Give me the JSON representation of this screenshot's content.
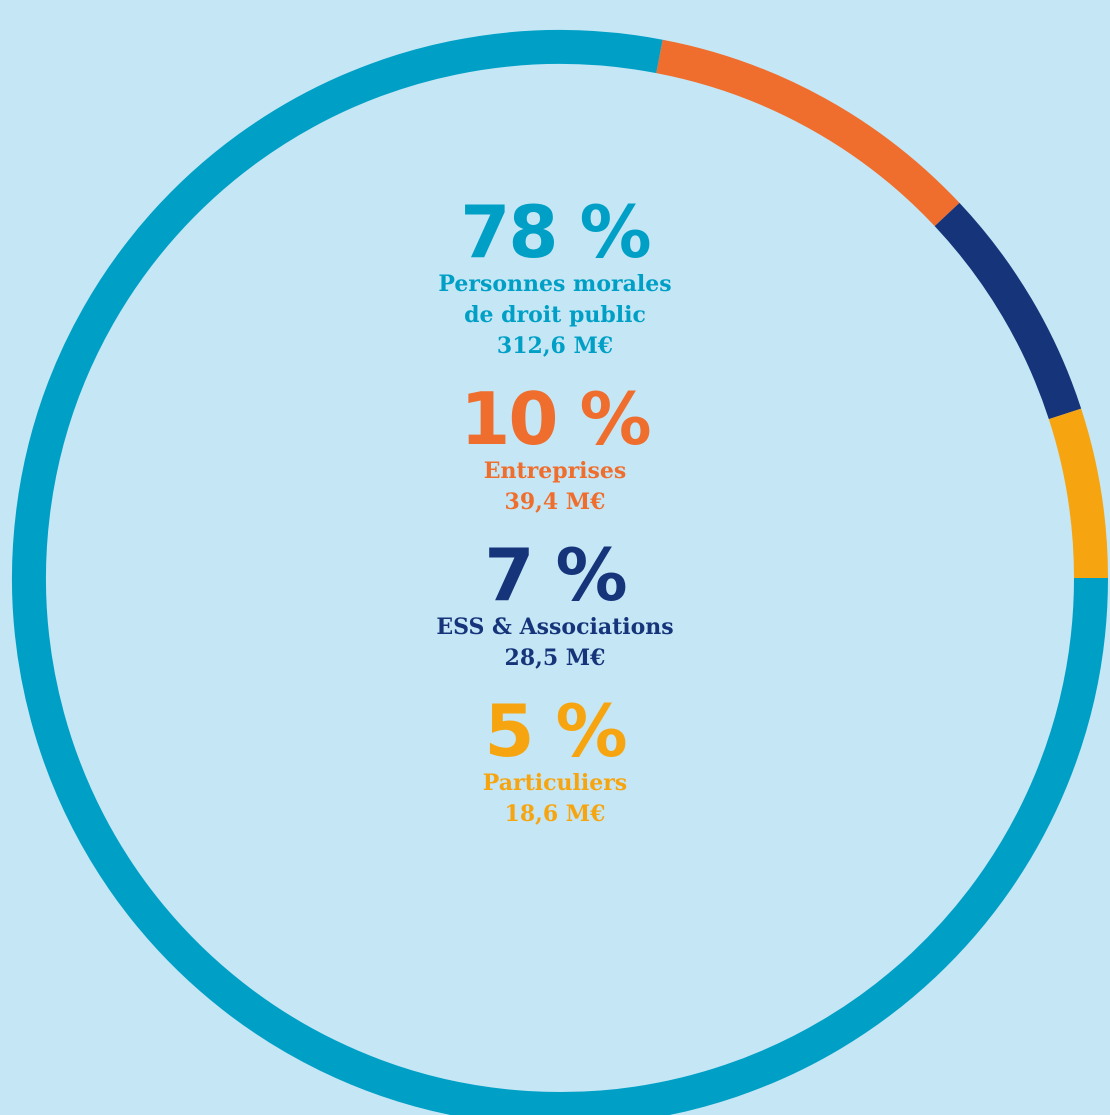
{
  "colors": {
    "background": "#c5e6f5",
    "public": "#00a0c6",
    "entreprises": "#ef6e2d",
    "ess": "#16347a",
    "particuliers": "#f6a510"
  },
  "chart_data": {
    "type": "pie",
    "variant": "donut",
    "series": [
      {
        "name": "Personnes morales de droit public",
        "percent_label": "78 %",
        "value": 78,
        "amount": "312,6 M€",
        "color": "#00a0c6"
      },
      {
        "name": "Entreprises",
        "percent_label": "10 %",
        "value": 10,
        "amount": "39,4 M€",
        "color": "#ef6e2d"
      },
      {
        "name": "ESS & Associations",
        "percent_label": "7 %",
        "value": 7,
        "amount": "28,5 M€",
        "color": "#16347a"
      },
      {
        "name": "Particuliers",
        "percent_label": "5 %",
        "value": 5,
        "amount": "18,6 M€",
        "color": "#f6a510"
      }
    ],
    "labels": [
      {
        "pct": "78 %",
        "line1": "Personnes morales",
        "line2": "de droit public",
        "amount": "312,6 M€"
      },
      {
        "pct": "10 %",
        "line1": "Entreprises",
        "amount": "39,4 M€"
      },
      {
        "pct": "7 %",
        "line1": "ESS & Associations",
        "amount": "28,5 M€"
      },
      {
        "pct": "5 %",
        "line1": "Particuliers",
        "amount": "18,6 M€"
      }
    ]
  }
}
